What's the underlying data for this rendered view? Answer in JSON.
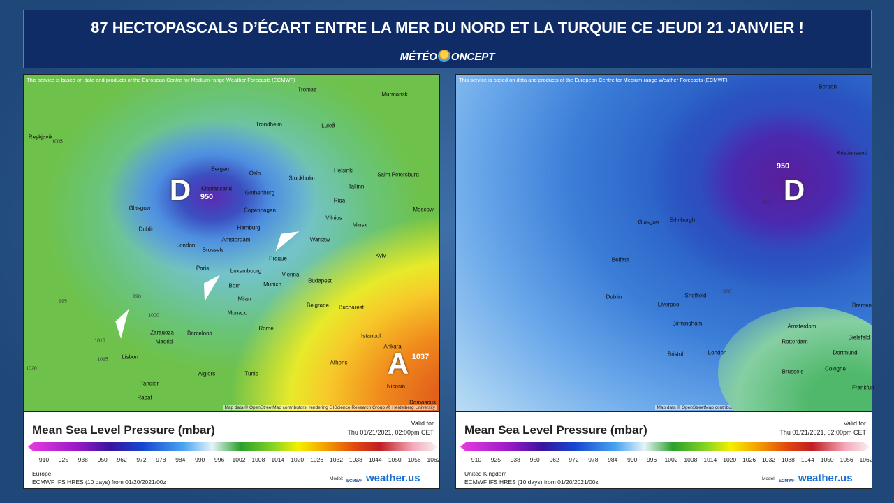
{
  "header": {
    "title": "87 HECTOPASCALS D’ÉCART ENTRE LA MER DU NORD ET LA TURQUIE CE JEUDI 21 JANVIER !",
    "brand": {
      "left": "MÉTÉO",
      "right": "ONCEPT"
    }
  },
  "panels": [
    {
      "attribution": "This service is based on data and products of the European Centre for Medium-range Weather Forecasts (ECMWF)",
      "labels": [
        "D",
        "950",
        "A",
        "1037",
        "Reykjavik",
        "Tromsø",
        "Murmansk",
        "Trondheim",
        "Luleå",
        "Bergen",
        "Oslo",
        "Helsinki",
        "Stockholm",
        "Saint Petersburg",
        "Kristiansand",
        "Gothenburg",
        "Tallinn",
        "Glasgow",
        "Copenhagen",
        "Riga",
        "Moscow",
        "Dublin",
        "Hamburg",
        "Vilnius",
        "Minsk",
        "London",
        "Amsterdam",
        "Warsaw",
        "Brussels",
        "Paris",
        "Luxembourg",
        "Prague",
        "Kyiv",
        "Bern",
        "Munich",
        "Vienna",
        "Budapest",
        "Milan",
        "Belgrade",
        "Bucharest",
        "Monaco",
        "Rome",
        "Zaragoza",
        "Barcelona",
        "Madrid",
        "Istanbul",
        "Ankara",
        "Lisbon",
        "Athens",
        "Algiers",
        "Tunis",
        "Tangier",
        "Nicosia",
        "Rabat",
        "Damascus",
        "1005",
        "995",
        "990",
        "1000",
        "1010",
        "1015",
        "1020"
      ],
      "credit": "Map data © OpenStreetMap contributors, rendering GIScience Research Group @ Heidelberg University",
      "legend": {
        "title": "Mean Sea Level Pressure (mbar)",
        "valid_label": "Valid for",
        "valid_time": "Thu 01/21/2021, 02:00pm CET",
        "scale": [
          910,
          925,
          938,
          950,
          962,
          972,
          978,
          984,
          990,
          996,
          1002,
          1008,
          1014,
          1020,
          1026,
          1032,
          1038,
          1044,
          1050,
          1056,
          1062
        ]
      },
      "footer": {
        "region": "Europe",
        "model_run": "ECMWF IFS HRES (10 days) from 01/20/2021/00z",
        "model_label": "Model:",
        "model_logo": "ECMWF",
        "site": "weather.us"
      }
    },
    {
      "attribution": "This service is based on data and products of the European Centre for Medium-range Weather Forecasts (ECMWF)",
      "labels": [
        "D",
        "950",
        "Bergen",
        "Kristiansand",
        "Glasgow",
        "Edinburgh",
        "Belfast",
        "Dublin",
        "Liverpool",
        "Sheffield",
        "Birmingham",
        "Amsterdam",
        "Bremen",
        "Rotterdam",
        "Bielefeld",
        "Dortmund",
        "Bristol",
        "London",
        "Cologne",
        "Brussels",
        "Frankfurt",
        "960",
        "980"
      ],
      "credit": "Map data © OpenStreetMap contributors, rendering GIScience Research Group @ Heidelberg University",
      "legend": {
        "title": "Mean Sea Level Pressure (mbar)",
        "valid_label": "Valid for",
        "valid_time": "Thu 01/21/2021, 02:00pm CET",
        "scale": [
          910,
          925,
          938,
          950,
          962,
          972,
          978,
          984,
          990,
          996,
          1002,
          1008,
          1014,
          1020,
          1026,
          1032,
          1038,
          1044,
          1050,
          1056,
          1062
        ]
      },
      "footer": {
        "region": "United Kingdom",
        "model_run": "ECMWF IFS HRES (10 days) from 01/20/2021/00z",
        "model_label": "Model:",
        "model_logo": "ECMWF",
        "site": "weather.us"
      }
    }
  ]
}
